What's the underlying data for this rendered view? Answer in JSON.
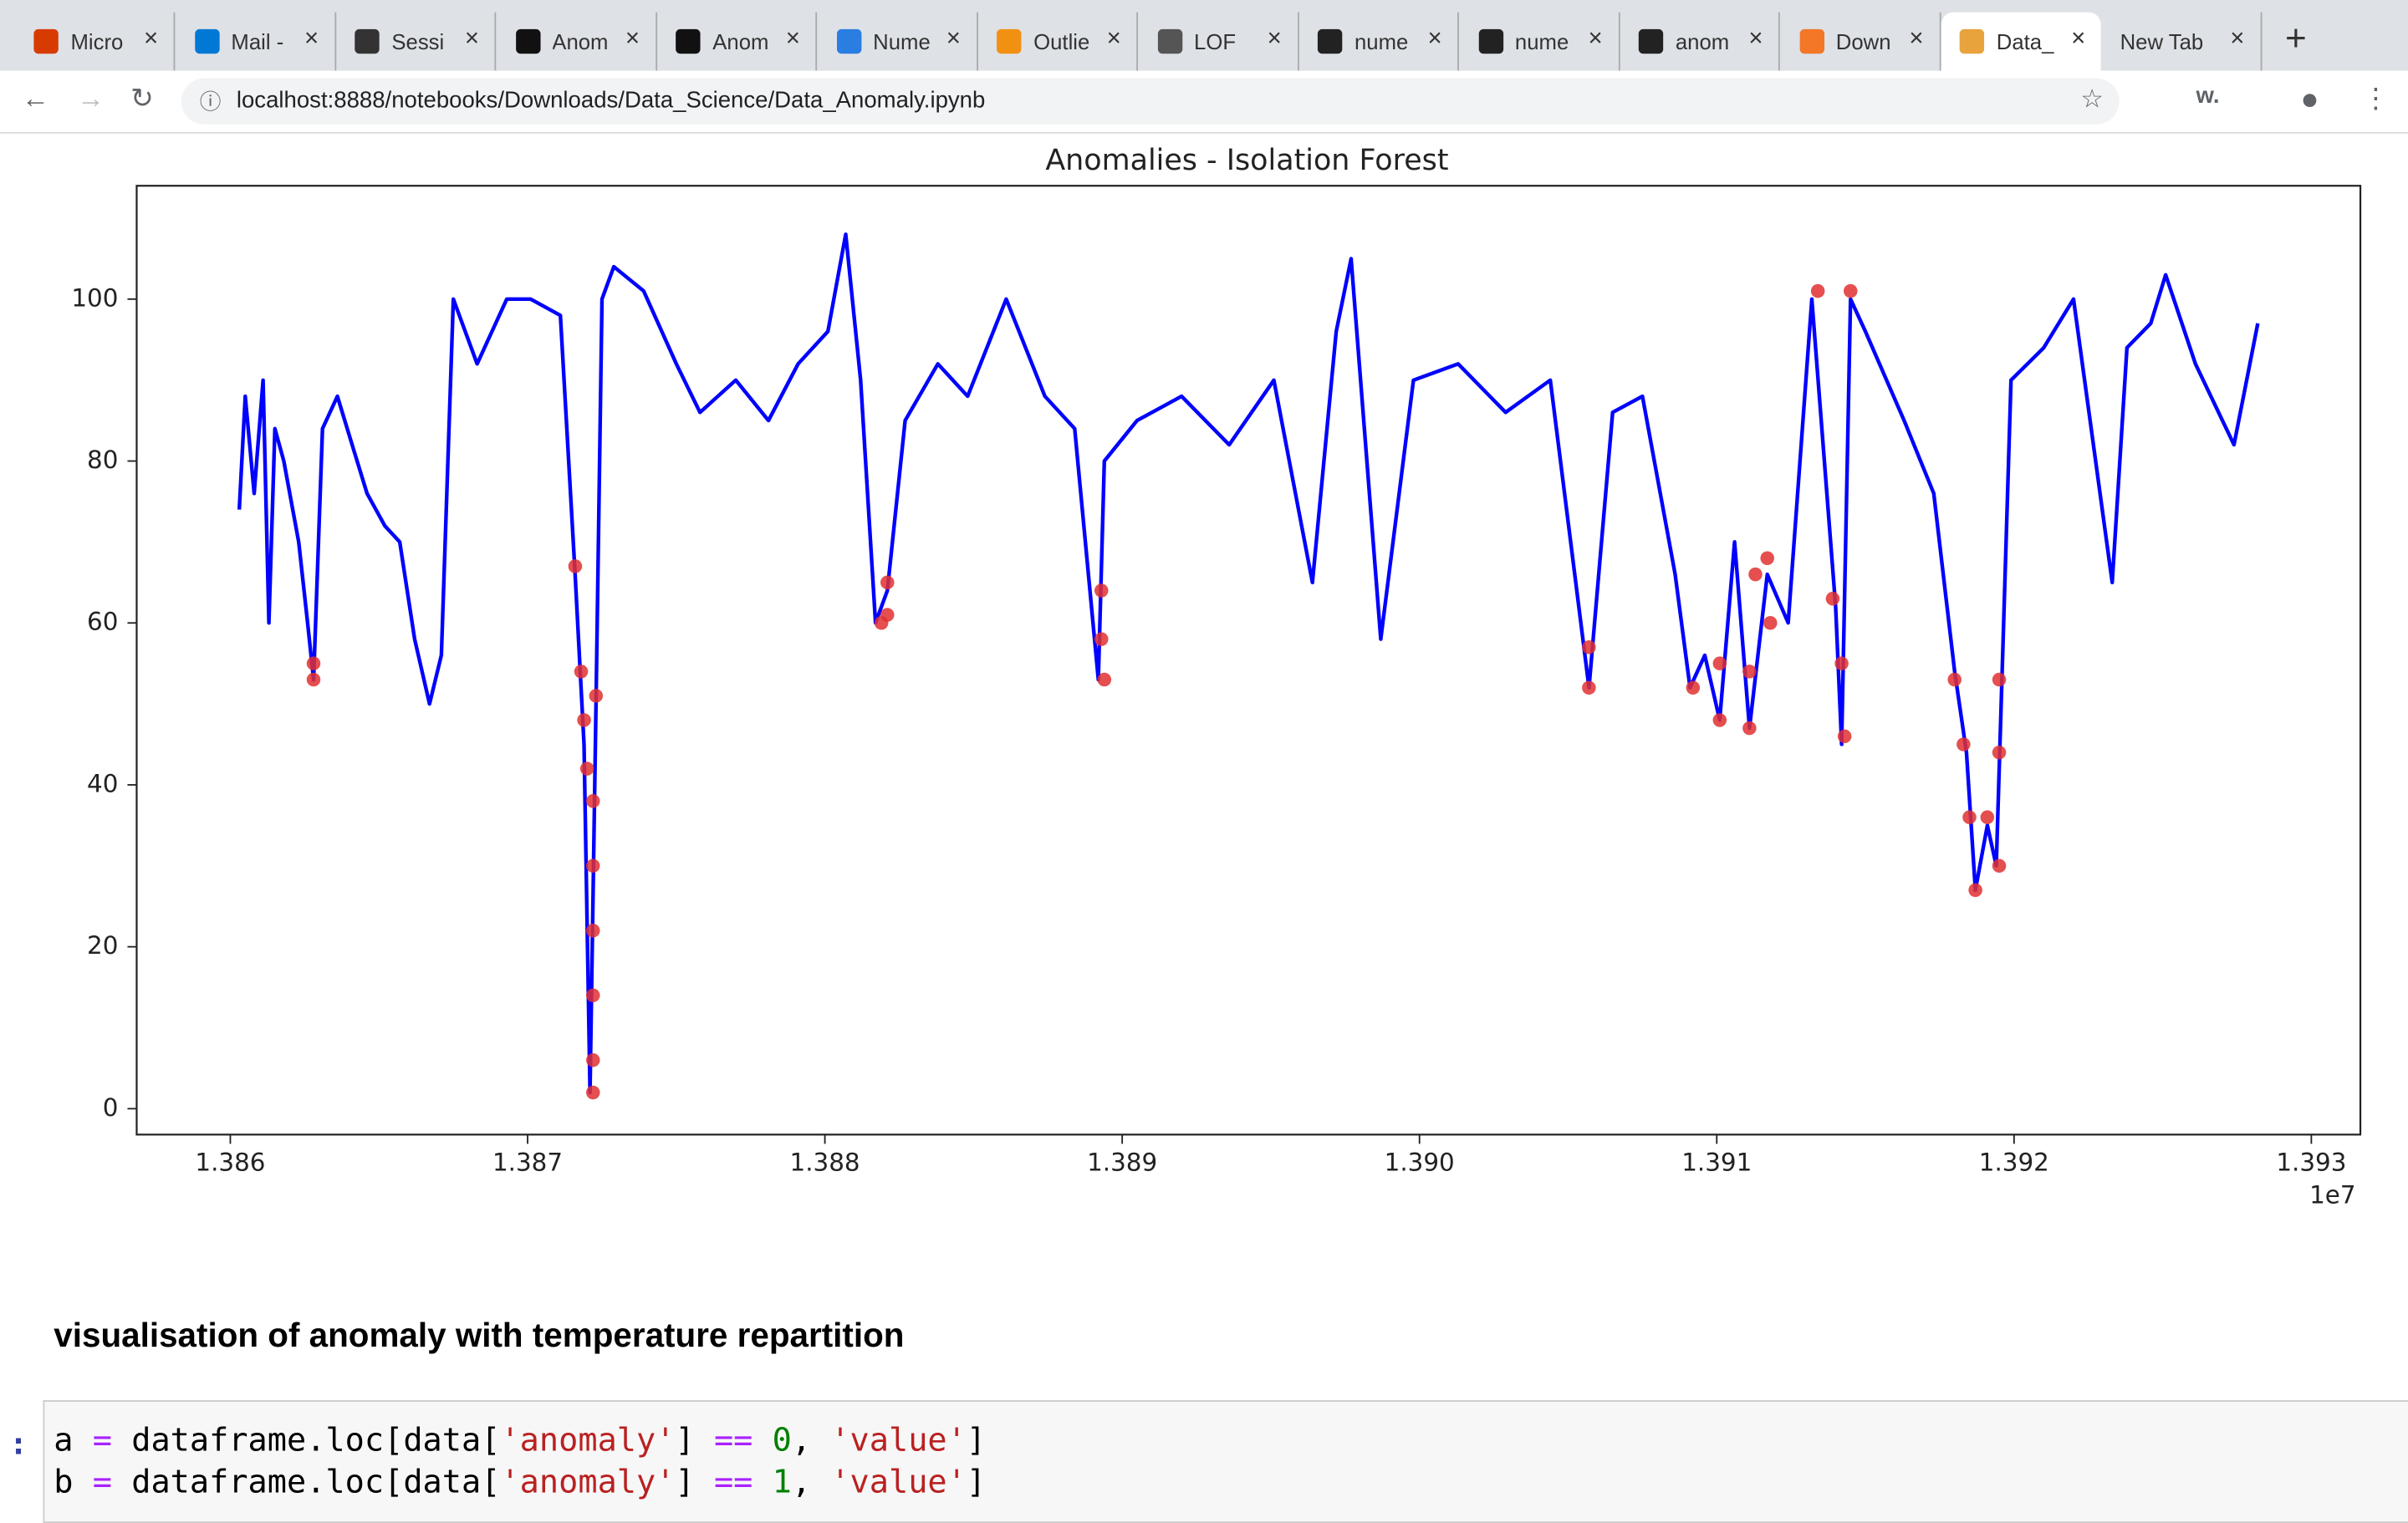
{
  "browser": {
    "tabs": [
      "Micro",
      "Mail -",
      "Sessi",
      "Anom",
      "Anom",
      "Nume",
      "Outlie",
      "LOF",
      "nume",
      "nume",
      "anom",
      "Down",
      "Data_",
      "New Tab"
    ],
    "active_tab": 12,
    "url": "localhost:8888/notebooks/Downloads/Data_Science/Data_Anomaly.ipynb"
  },
  "chart_data": {
    "type": "line",
    "title": "Anomalies - Isolation Forest",
    "x_offset_label": "1e7",
    "xlim": [
      1.385685,
      1.393165
    ],
    "ylim": [
      -3.2,
      114
    ],
    "xticks": [
      {
        "value": 1.386,
        "label": "1.386"
      },
      {
        "value": 1.387,
        "label": "1.387"
      },
      {
        "value": 1.388,
        "label": "1.388"
      },
      {
        "value": 1.389,
        "label": "1.389"
      },
      {
        "value": 1.39,
        "label": "1.390"
      },
      {
        "value": 1.391,
        "label": "1.391"
      },
      {
        "value": 1.392,
        "label": "1.392"
      },
      {
        "value": 1.393,
        "label": "1.393"
      }
    ],
    "yticks": [
      0,
      20,
      40,
      60,
      80,
      100
    ],
    "grid": false,
    "series": [
      {
        "color": "#0000ff",
        "x": [
          1.38603,
          1.38605,
          1.38608,
          1.38611,
          1.38613,
          1.38615,
          1.38618,
          1.38623,
          1.38626,
          1.38628,
          1.38631,
          1.38636,
          1.38641,
          1.38646,
          1.38652,
          1.38657,
          1.38662,
          1.38667,
          1.38671,
          1.38675,
          1.38683,
          1.38693,
          1.38701,
          1.38711,
          1.38716,
          1.38719,
          1.38721,
          1.38723,
          1.38725,
          1.38729,
          1.38739,
          1.3875,
          1.38758,
          1.3877,
          1.38781,
          1.38791,
          1.38801,
          1.38807,
          1.38812,
          1.38817,
          1.38821,
          1.38827,
          1.38838,
          1.38848,
          1.38861,
          1.38874,
          1.38884,
          1.38892,
          1.38894,
          1.38905,
          1.3892,
          1.38936,
          1.38951,
          1.38964,
          1.38972,
          1.38977,
          1.38987,
          1.38998,
          1.39013,
          1.39029,
          1.39044,
          1.39057,
          1.39065,
          1.39075,
          1.39086,
          1.39091,
          1.39096,
          1.39101,
          1.39106,
          1.39111,
          1.39117,
          1.39124,
          1.39132,
          1.3914,
          1.39142,
          1.39145,
          1.3915,
          1.39163,
          1.39173,
          1.3918,
          1.39184,
          1.39187,
          1.39191,
          1.39194,
          1.39199,
          1.3921,
          1.3922,
          1.39233,
          1.39238,
          1.39246,
          1.39251,
          1.39261,
          1.39274,
          1.39282
        ],
        "values": [
          74,
          88,
          76,
          90,
          60,
          84,
          80,
          70,
          60,
          53,
          84,
          88,
          82,
          76,
          72,
          70,
          58,
          50,
          56,
          100,
          92,
          100,
          100,
          98,
          66,
          45,
          2,
          50,
          100,
          104,
          101,
          92,
          86,
          90,
          85,
          92,
          96,
          108,
          90,
          60,
          64,
          85,
          92,
          88,
          100,
          88,
          84,
          53,
          80,
          85,
          88,
          82,
          90,
          65,
          96,
          105,
          58,
          90,
          92,
          86,
          90,
          52,
          86,
          88,
          66,
          52,
          56,
          48,
          70,
          47,
          66,
          60,
          100,
          62,
          45,
          100,
          96,
          85,
          76,
          54,
          44,
          27,
          35,
          30,
          90,
          94,
          100,
          65,
          94,
          97,
          103,
          92,
          82,
          97
        ]
      }
    ],
    "anomalies": {
      "color": "#e03030",
      "x": [
        1.38628,
        1.38628,
        1.38716,
        1.38718,
        1.38719,
        1.3872,
        1.38722,
        1.38722,
        1.38722,
        1.38722,
        1.38722,
        1.38722,
        1.38723,
        1.38819,
        1.38821,
        1.38821,
        1.38893,
        1.38893,
        1.38894,
        1.39057,
        1.39057,
        1.39092,
        1.39101,
        1.39101,
        1.39111,
        1.39111,
        1.39113,
        1.39117,
        1.39118,
        1.39134,
        1.39139,
        1.39142,
        1.39143,
        1.39145,
        1.3918,
        1.39183,
        1.39185,
        1.39187,
        1.39191,
        1.39195,
        1.39195,
        1.39195
      ],
      "values": [
        55,
        53,
        67,
        54,
        48,
        42,
        38,
        30,
        22,
        14,
        6,
        2,
        51,
        60,
        65,
        61,
        64,
        58,
        53,
        57,
        52,
        52,
        55,
        48,
        54,
        47,
        66,
        68,
        60,
        101,
        63,
        55,
        46,
        101,
        53,
        45,
        36,
        27,
        36,
        30,
        44,
        53
      ]
    }
  },
  "notebook": {
    "heading": "visualisation of anomaly with temperature repartition",
    "prompt": ":",
    "code": [
      [
        "a",
        " =",
        " dataframe.loc[data[",
        "'anomaly'",
        "]",
        " ==",
        " 0",
        ", ",
        "'value'",
        "]"
      ],
      [
        "b",
        " =",
        " dataframe.loc[data[",
        "'anomaly'",
        "]",
        " ==",
        " 1",
        ", ",
        "'value'",
        "]"
      ]
    ]
  }
}
